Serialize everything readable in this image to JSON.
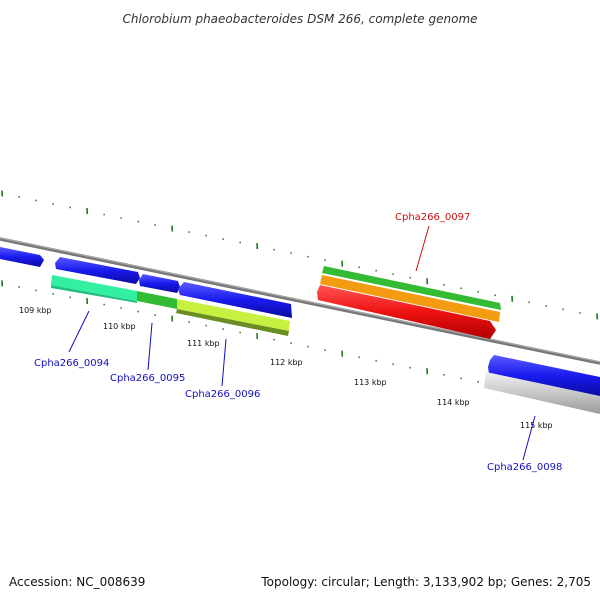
{
  "title": "Chlorobium phaeobacteroides DSM 266, complete genome",
  "accession": "Accession: NC_008639",
  "topology": "Topology: circular; Length: 3,133,902 bp; Genes: 2,705",
  "kbp_ticks": [
    {
      "label": "109 kbp"
    },
    {
      "label": "110 kbp"
    },
    {
      "label": "111 kbp"
    },
    {
      "label": "112 kbp"
    },
    {
      "label": "113 kbp"
    },
    {
      "label": "114 kbp"
    },
    {
      "label": "115 kbp"
    }
  ],
  "genes": [
    {
      "label": "Cpha266_0094",
      "color": "#1010c0"
    },
    {
      "label": "Cpha266_0095",
      "color": "#1010c0"
    },
    {
      "label": "Cpha266_0096",
      "color": "#1010c0"
    },
    {
      "label": "Cpha266_0097",
      "color": "#cc1010"
    },
    {
      "label": "Cpha266_0098",
      "color": "#1010c0"
    }
  ],
  "colors": {
    "backbone": "#777777",
    "cds": "#1a1aee",
    "tick": "#1f7a1f",
    "red_feature": "#ee1111",
    "orange_feature": "#f39c12",
    "green_feature": "#33bb33",
    "teal_feature": "#33f0a0",
    "lime_feature": "#c8f040",
    "olive_feature": "#6b8e23",
    "gray_feature": "#c8c8c8"
  }
}
